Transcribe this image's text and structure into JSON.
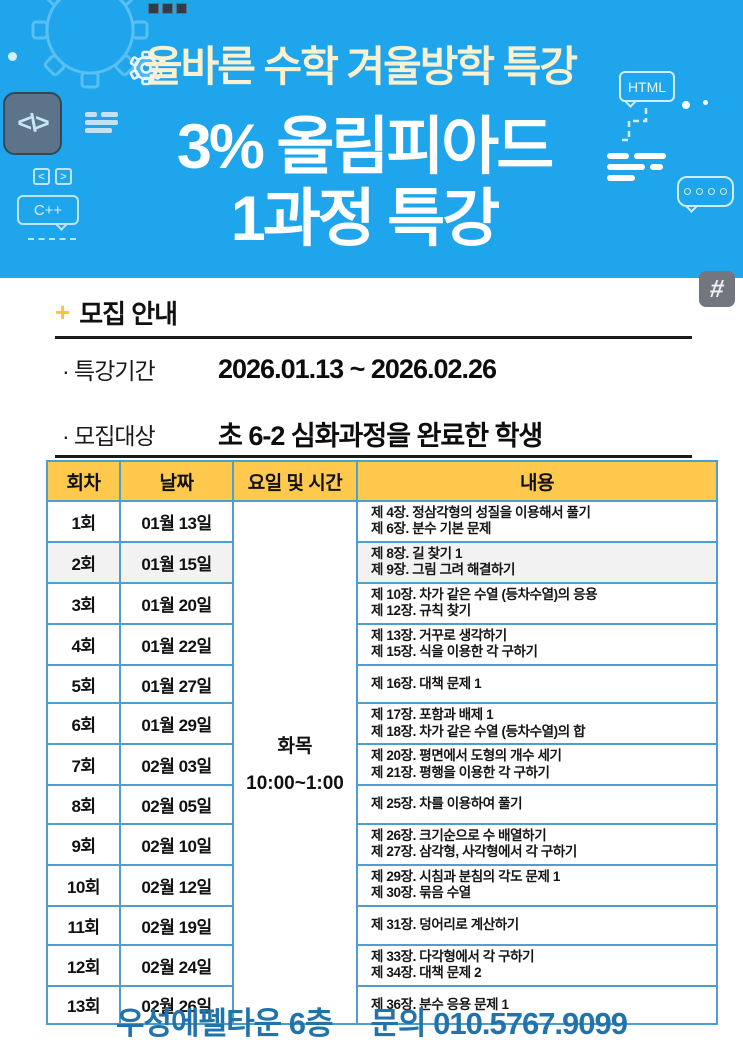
{
  "theme": {
    "banner-bg": "#1EA5EC",
    "subtitle-color": "#FBF0CF",
    "code-box-bg": "#5C7389",
    "hash-bg": "#73767E",
    "accent-gold": "#F6C343",
    "table-header-bg": "#FFC94E",
    "table-border": "#4E9FD0",
    "highlight-bg": "#F2F2F3",
    "footer-color": "#2173A9"
  },
  "banner": {
    "subtitle": "올바른 수학 겨울방학 특강",
    "title_line1": "3% 올림피아드",
    "title_line2": "1과정 특강",
    "icons": {
      "code_box_glyph": "<\\>",
      "angle_left": "<",
      "angle_right": ">",
      "cpp_label": "C++",
      "html_label": "HTML",
      "hash_label": "#"
    }
  },
  "recruit": {
    "plus_mark": "+",
    "section_title": "모집 안내",
    "items": [
      {
        "label": "· 특강기간",
        "value": "2026.01.13 ~ 2026.02.26"
      },
      {
        "label": "· 모집대상",
        "value": "초 6-2 심화과정을 완료한 학생"
      }
    ]
  },
  "schedule_table": {
    "headers": [
      "회차",
      "날짜",
      "요일 및 시간",
      "내용"
    ],
    "day_time": {
      "day": "화목",
      "time": "10:00~1:00"
    },
    "rows": [
      {
        "session": "1회",
        "date": "01월 13일",
        "content": [
          "제 4장. 정삼각형의 성질을 이용해서 풀기",
          "제 6장. 분수 기본 문제"
        ],
        "highlight": false
      },
      {
        "session": "2회",
        "date": "01월 15일",
        "content": [
          "제 8장. 길 찾기 1",
          "제 9장. 그림 그려 해결하기"
        ],
        "highlight": true
      },
      {
        "session": "3회",
        "date": "01월 20일",
        "content": [
          "제 10장. 차가 같은 수열 (등차수열)의 응용",
          "제 12장. 규칙 찾기"
        ],
        "highlight": false
      },
      {
        "session": "4회",
        "date": "01월 22일",
        "content": [
          "제 13장. 거꾸로 생각하기",
          "제 15장. 식을 이용한 각 구하기"
        ],
        "highlight": false
      },
      {
        "session": "5회",
        "date": "01월 27일",
        "content": [
          "제 16장. 대책 문제 1"
        ],
        "highlight": false
      },
      {
        "session": "6회",
        "date": "01월 29일",
        "content": [
          "제 17장. 포함과 배제 1",
          "제 18장. 차가 같은 수열 (등차수열)의 합"
        ],
        "highlight": false
      },
      {
        "session": "7회",
        "date": "02월 03일",
        "content": [
          "제 20장. 평면에서 도형의 개수 세기",
          "제 21장. 평행을 이용한 각 구하기"
        ],
        "highlight": false
      },
      {
        "session": "8회",
        "date": "02월 05일",
        "content": [
          "제 25장. 차를 이용하여 풀기"
        ],
        "highlight": false
      },
      {
        "session": "9회",
        "date": "02월 10일",
        "content": [
          "제 26장. 크기순으로 수 배열하기",
          "제 27장. 삼각형, 사각형에서 각 구하기"
        ],
        "highlight": false
      },
      {
        "session": "10회",
        "date": "02월 12일",
        "content": [
          "제 29장. 시침과 분침의 각도 문제 1",
          "제 30장. 묶음 수열"
        ],
        "highlight": false
      },
      {
        "session": "11회",
        "date": "02월 19일",
        "content": [
          "제 31장. 덩어리로 계산하기"
        ],
        "highlight": false
      },
      {
        "session": "12회",
        "date": "02월 24일",
        "content": [
          "제 33장. 다각형에서 각 구하기",
          "제 34장. 대책 문제 2"
        ],
        "highlight": false
      },
      {
        "session": "13회",
        "date": "02월 26일",
        "content": [
          "제 36장. 분수 응용 문제 1"
        ],
        "highlight": false
      }
    ]
  },
  "footer": {
    "location": "우성에펠타운 6층",
    "contact": "문의 010.5767.9099"
  }
}
